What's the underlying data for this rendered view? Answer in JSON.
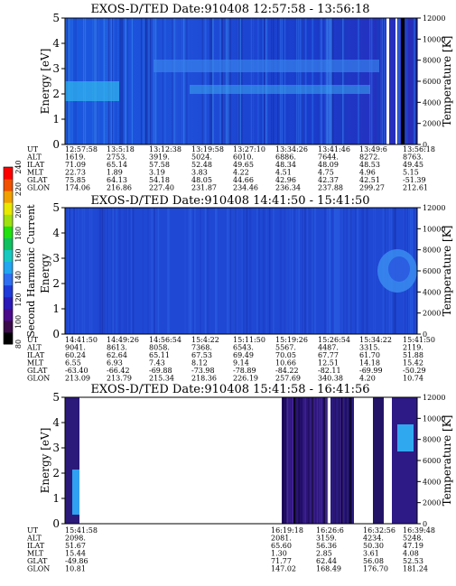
{
  "colorbar": {
    "label": "Second Harmonic Current",
    "ticks": [
      "80",
      "100",
      "120",
      "140",
      "160",
      "180",
      "200",
      "220",
      "240"
    ],
    "colors": [
      "#000000",
      "#3a0a4a",
      "#4a0a8a",
      "#2a1ab8",
      "#1e3ad8",
      "#2f6ef0",
      "#22a6f0",
      "#16c8c0",
      "#10c060",
      "#20e010",
      "#a0e010",
      "#e8e800",
      "#f0a000",
      "#f05000",
      "#ff0000"
    ]
  },
  "chart_data": [
    {
      "type": "heatmap",
      "title": "EXOS-D/TED   Date:910408   12:57:58 - 13:56:18",
      "ylabel": "Energy [eV]",
      "ylabel_right": "Temperature [K]",
      "ylim": [
        0,
        5
      ],
      "yticks": [
        "0",
        "1",
        "2",
        "3",
        "4",
        "5"
      ],
      "ylim_right": [
        0,
        12000
      ],
      "yticks_right": [
        "0",
        "2000",
        "4000",
        "6000",
        "8000",
        "10000",
        "12000"
      ],
      "ephemeris": {
        "rows": [
          "UT",
          "ALT",
          "ILAT",
          "MLT",
          "GLAT",
          "GLON"
        ],
        "columns": [
          [
            "12:57:58",
            "1619.",
            "71.09",
            "22.73",
            "75.85",
            "174.06"
          ],
          [
            "13:5:18",
            "2753.",
            "65.14",
            "1.89",
            "64.13",
            "216.86"
          ],
          [
            "13:12:38",
            "3919.",
            "57.58",
            "3.19",
            "54.18",
            "227.40"
          ],
          [
            "13:19:58",
            "5024.",
            "52.48",
            "3.83",
            "48.05",
            "231.87"
          ],
          [
            "13:27:10",
            "6010.",
            "49.65",
            "4.22",
            "44.66",
            "234.46"
          ],
          [
            "13:34:26",
            "6886.",
            "48.34",
            "4.51",
            "42.96",
            "236.34"
          ],
          [
            "13:41:46",
            "7644.",
            "48.09",
            "4.75",
            "42.37",
            "237.88"
          ],
          [
            "13:49:6",
            "8272.",
            "48.53",
            "4.96",
            "42.51",
            "299.27"
          ],
          [
            "13:56:18",
            "8763.",
            "49.45",
            "5.15",
            "-51.39",
            "212.61"
          ]
        ]
      }
    },
    {
      "type": "heatmap",
      "title": "EXOS-D/TED   Date:910408   14:41:50 - 15:41:50",
      "ylabel": "Energy",
      "ylabel_right": "Temperature [K]",
      "ylim": [
        0,
        5
      ],
      "yticks": [
        "0",
        "1",
        "2",
        "3",
        "4",
        "5"
      ],
      "ylim_right": [
        0,
        12000
      ],
      "yticks_right": [
        "0",
        "2000",
        "4000",
        "6000",
        "8000",
        "10000",
        "12000"
      ],
      "ephemeris": {
        "rows": [
          "UT",
          "ALT",
          "ILAT",
          "MLT",
          "GLAT",
          "GLON"
        ],
        "columns": [
          [
            "14:41:50",
            "9041.",
            "60.24",
            "6.55",
            "-63.40",
            "213.09"
          ],
          [
            "14:49:26",
            "8613.",
            "62.64",
            "6.93",
            "-66.42",
            "213.79"
          ],
          [
            "14:56:54",
            "8058.",
            "65.11",
            "7.43",
            "-69.88",
            "215.34"
          ],
          [
            "15:4:22",
            "7368.",
            "67.53",
            "8.12",
            "-73.98",
            "218.36"
          ],
          [
            "15:11:50",
            "6543.",
            "69.49",
            "9.14",
            "-78.89",
            "226.19"
          ],
          [
            "15:19:26",
            "5567.",
            "70.05",
            "10.66",
            "-84.22",
            "257.69"
          ],
          [
            "15:26:54",
            "4487.",
            "67.77",
            "12.51",
            "-82.11",
            "340.38"
          ],
          [
            "15:34:22",
            "3315.",
            "61.70",
            "14.18",
            "-69.99",
            "4.20"
          ],
          [
            "15:41:50",
            "2119.",
            "51.88",
            "15.42",
            "-50.29",
            "10.74"
          ]
        ]
      }
    },
    {
      "type": "heatmap",
      "title": "EXOS-D/TED   Date:910408   15:41:58 - 16:41:56",
      "ylabel": "Energy [eV]",
      "ylabel_right": "Temperature [K]",
      "ylim": [
        0,
        5
      ],
      "yticks": [
        "0",
        "1",
        "2",
        "3",
        "4",
        "5"
      ],
      "ylim_right": [
        0,
        12000
      ],
      "yticks_right": [
        "0",
        "2000",
        "4000",
        "6000",
        "8000",
        "10000",
        "12000"
      ],
      "ephemeris": {
        "rows": [
          "UT",
          "ALT",
          "ILAT",
          "MLT",
          "GLAT",
          "GLON"
        ],
        "columns": [
          [
            "15:41:58",
            "2098.",
            "51.67",
            "15.44",
            "-49.86",
            "10.81"
          ],
          [
            "16:19:18",
            "2081.",
            "65.60",
            "1.30",
            "71.77",
            "147.02"
          ],
          [
            "16:26:6",
            "3159.",
            "56.36",
            "2.85",
            "62.44",
            "168.49"
          ],
          [
            "16:32:56",
            "4234.",
            "50.30",
            "3.61",
            "56.08",
            "176.70"
          ],
          [
            "16:39:48",
            "5248.",
            "47.19",
            "4.08",
            "52.53",
            "181.24"
          ]
        ]
      }
    }
  ]
}
